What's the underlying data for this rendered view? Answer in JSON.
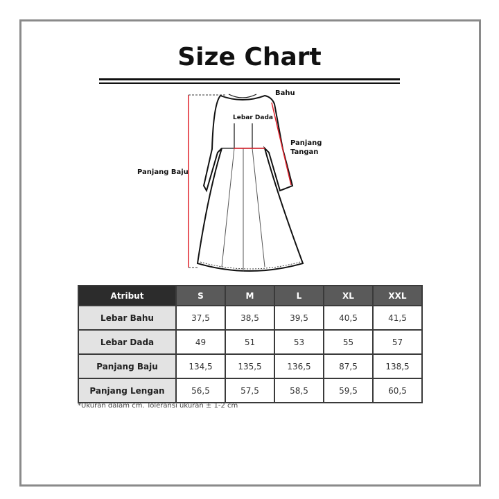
{
  "title": "Size Chart",
  "diagram_labels": {
    "shoulder": "Bahu",
    "chest": "Lebar Dada",
    "sleeve": "Panjang\nTangan",
    "sleeve_line1": "Panjang",
    "sleeve_line2": "Tangan",
    "length": "Panjang Baju"
  },
  "colors": {
    "measure_line": "#e0202a",
    "header_first": "#2c2c2c",
    "header": "#5a5a5a",
    "attr_cell": "#e3e3e3"
  },
  "table": {
    "headers": [
      "Atribut",
      "S",
      "M",
      "L",
      "XL",
      "XXL"
    ],
    "rows": [
      {
        "label": "Lebar Bahu",
        "values": [
          "37,5",
          "38,5",
          "39,5",
          "40,5",
          "41,5"
        ]
      },
      {
        "label": "Lebar Dada",
        "values": [
          "49",
          "51",
          "53",
          "55",
          "57"
        ]
      },
      {
        "label": "Panjang Baju",
        "values": [
          "134,5",
          "135,5",
          "136,5",
          "87,5",
          "138,5"
        ]
      },
      {
        "label": "Panjang Lengan",
        "values": [
          "56,5",
          "57,5",
          "58,5",
          "59,5",
          "60,5"
        ]
      }
    ]
  },
  "note": "*Ukuran dalam cm. Toleransi ukuran ± 1-2 cm"
}
